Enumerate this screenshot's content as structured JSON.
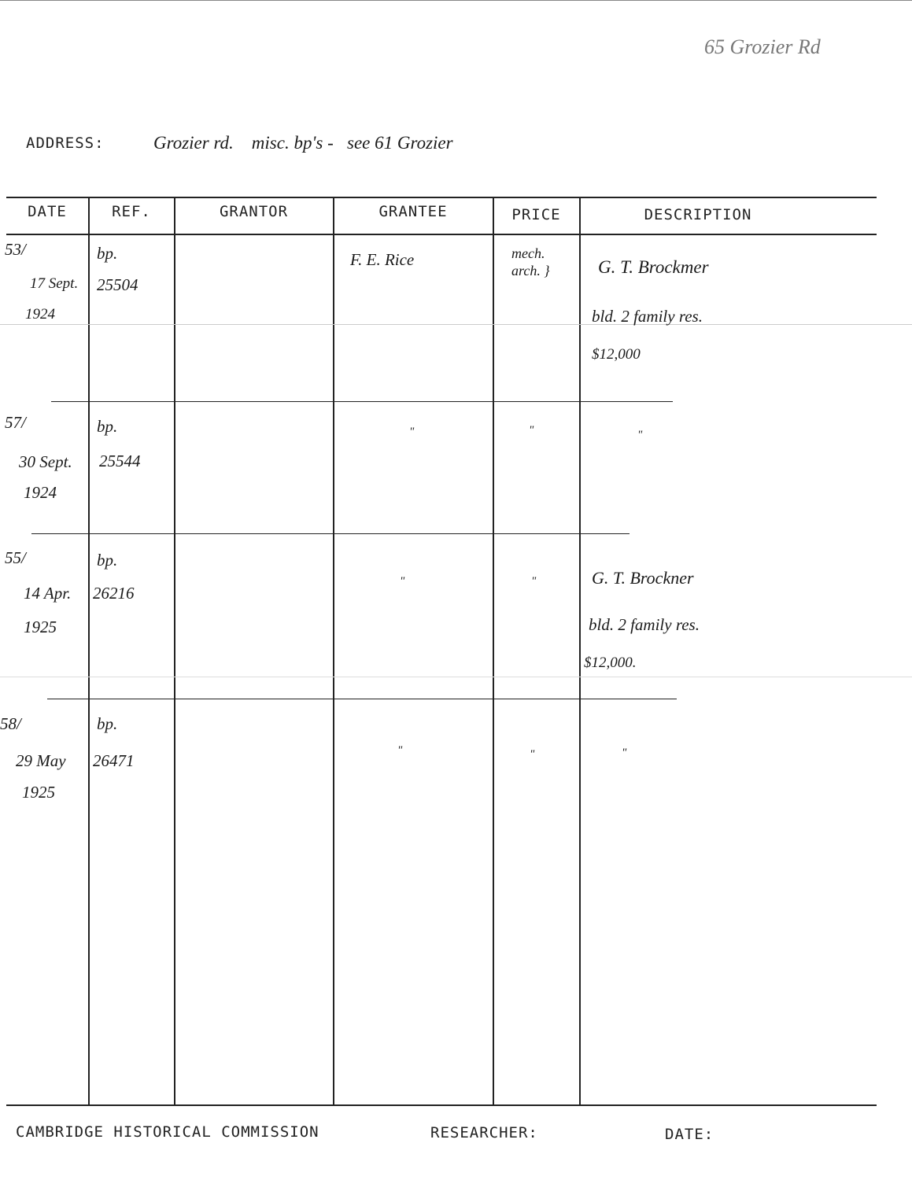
{
  "corner_note": "65 Grozier Rd",
  "address": {
    "label": "ADDRESS:",
    "value": "Grozier rd.    misc. bp's -   see 61 Grozier"
  },
  "columns": [
    "DATE",
    "REF.",
    "GRANTOR",
    "GRANTEE",
    "PRICE",
    "DESCRIPTION"
  ],
  "rows": [
    {
      "num": "53/",
      "date": "17 Sept.",
      "year": "1924",
      "ref_type": "bp.",
      "ref": "25504",
      "grantor": "",
      "grantee": "F. E. Rice",
      "price": "mech. arch. }",
      "desc": [
        "G. T. Brockmer",
        "bld. 2 family res.",
        "$12,000"
      ]
    },
    {
      "num": "57/",
      "date": "30 Sept.",
      "year": "1924",
      "ref_type": "bp.",
      "ref": "25544",
      "grantor": "",
      "grantee": "\"",
      "price": "\"",
      "desc": [
        "\""
      ]
    },
    {
      "num": "55/",
      "date": "14 Apr.",
      "year": "1925",
      "ref_type": "bp.",
      "ref": "26216",
      "grantor": "",
      "grantee": "\"",
      "price": "\"",
      "desc": [
        "G. T. Brockner",
        "bld. 2 family res.",
        "$12,000."
      ]
    },
    {
      "num": "58/",
      "date": "29 May",
      "year": "1925",
      "ref_type": "bp.",
      "ref": "26471",
      "grantor": "",
      "grantee": "\"",
      "price": "\"",
      "desc": [
        "\""
      ]
    }
  ],
  "footer": {
    "org": "CAMBRIDGE HISTORICAL COMMISSION",
    "researcher": "RESEARCHER:",
    "date": "DATE:"
  }
}
